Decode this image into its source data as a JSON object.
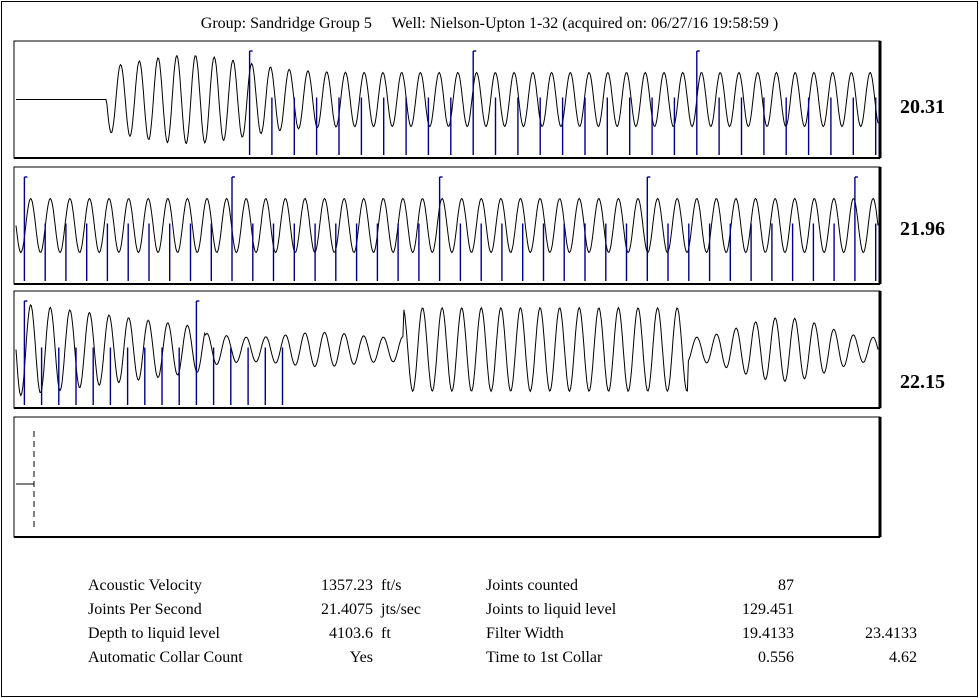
{
  "header": {
    "group_label": "Group: Sandridge Group 5",
    "well_label": "Well: Nielson-Upton 1-32 (acquired on: 06/27/16 19:58:59 )"
  },
  "chart_data": {
    "type": "line",
    "title": "",
    "colors": {
      "signal": "#000000",
      "collar_marker": "#00008b"
    },
    "panels": [
      {
        "rate_label": "20.31",
        "signal": {
          "flat_until": 0.105,
          "cycles": 46,
          "amplitude_pattern": "onset-then-steady"
        },
        "collar_markers": {
          "count": 29,
          "start": 0.272,
          "end": 0.995,
          "long_every": 10
        }
      },
      {
        "rate_label": "21.96",
        "signal": {
          "flat_until": 0.0,
          "cycles": 44,
          "amplitude_pattern": "steady"
        },
        "collar_markers": {
          "count": 42,
          "start": 0.012,
          "end": 0.995,
          "long_every": 10
        }
      },
      {
        "rate_label": "22.15",
        "signal": {
          "flat_until": 0.0,
          "cycles": 44,
          "amplitude_pattern": "decay-then-burst"
        },
        "collar_markers": {
          "count": 16,
          "start": 0.012,
          "end": 0.31,
          "long_every": 10
        }
      },
      {
        "rate_label": "",
        "signal": {
          "flat_until": 0.0,
          "cycles": 0,
          "amplitude_pattern": "empty"
        },
        "collar_markers": {
          "count": 1,
          "start": 0.02,
          "end": 0.02,
          "long_every": 10
        }
      }
    ]
  },
  "stats": {
    "acoustic_velocity": {
      "label": "Acoustic Velocity",
      "value": "1357.23",
      "unit": "ft/s"
    },
    "joints_per_second": {
      "label": "Joints Per Second",
      "value": "21.4075",
      "unit": "jts/sec"
    },
    "depth_to_liquid": {
      "label": "Depth to liquid level",
      "value": "4103.6",
      "unit": "ft"
    },
    "auto_collar_count": {
      "label": "Automatic Collar Count",
      "value": "Yes"
    },
    "joints_counted": {
      "label": "Joints counted",
      "value": "87"
    },
    "joints_to_liquid": {
      "label": "Joints to liquid level",
      "value": "129.451"
    },
    "filter_width": {
      "label": "Filter Width",
      "value": "19.4133",
      "value2": "23.4133"
    },
    "time_to_first_collar": {
      "label": "Time to 1st Collar",
      "value": "0.556",
      "value2": "4.62"
    }
  }
}
